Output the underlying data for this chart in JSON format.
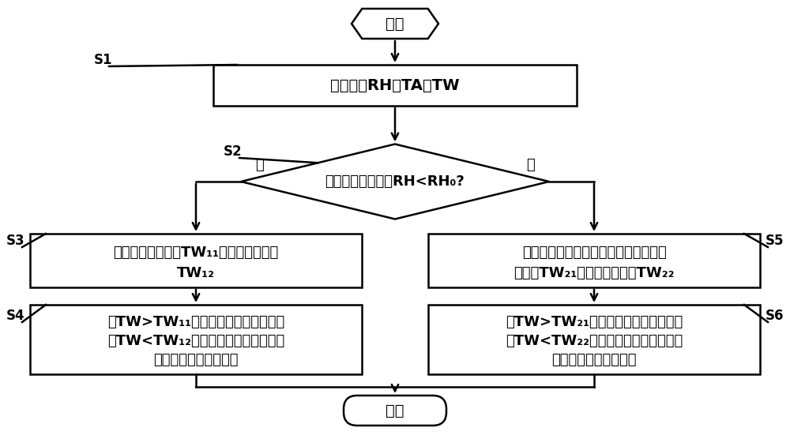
{
  "bg_color": "#ffffff",
  "line_color": "#000000",
  "text_color": "#000000",
  "start_text": "开始",
  "end_text": "结束",
  "box1_text": "实时获取RH、TA和TW",
  "box1_label": "S1",
  "diamond_text": "带载运行状态下，RH<RH₀?",
  "diamond_label": "S2",
  "box3_line1": "确定第一启动水温TW₁₁和第一停机水温",
  "box3_line2": "TW₁₂",
  "box3_label": "S3",
  "box5_line1": "对功率柜进行加热除湿，并确定第二启",
  "box5_line2": "动水温TW₂₁和第二停机水温TW₂₂",
  "box5_label": "S5",
  "box4_line1": "当TW>TW₁₁时，生成第一启动指令，",
  "box4_line2": "当TW<TW₁₂时，生成第一停机指令，",
  "box4_line3": "并将其发送至主控系统",
  "box4_label": "S4",
  "box6_line1": "当TW>TW₂₁时，生成第二启动指令，",
  "box6_line2": "当TW<TW₂₂时，生成第二停机指令，",
  "box6_line3": "并将其发送至主控系统",
  "box6_label": "S6",
  "yes_label": "是",
  "no_label": "否"
}
